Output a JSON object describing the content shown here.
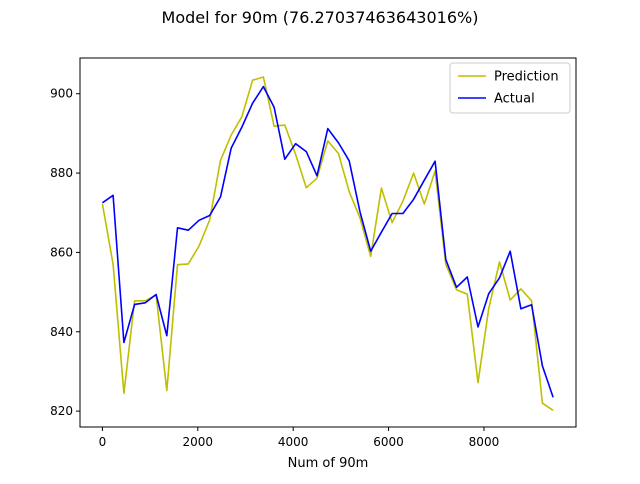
{
  "chart_data": {
    "type": "line",
    "title": "Model for 90m (76.27037463643016%)",
    "xlabel": "Num of 90m",
    "ylabel": "",
    "xlim": [
      -470,
      9930
    ],
    "ylim": [
      816,
      909
    ],
    "xticks": [
      0,
      2000,
      4000,
      6000,
      8000
    ],
    "yticks": [
      820,
      840,
      860,
      880,
      900
    ],
    "grid": false,
    "legend_position": "upper right",
    "x": [
      0,
      225,
      450,
      675,
      900,
      1125,
      1350,
      1575,
      1800,
      2025,
      2250,
      2475,
      2700,
      2925,
      3150,
      3375,
      3600,
      3825,
      4050,
      4275,
      4500,
      4725,
      4950,
      5175,
      5400,
      5625,
      5850,
      6075,
      6300,
      6525,
      6750,
      6975,
      7200,
      7425,
      7650,
      7875,
      8100,
      8325,
      8550,
      8775,
      9000,
      9225,
      9450
    ],
    "series": [
      {
        "name": "Prediction",
        "color": "#bfbf00",
        "values": [
          872.2,
          857.0,
          824.5,
          847.8,
          847.8,
          849.3,
          825.2,
          856.9,
          857.1,
          861.6,
          868.2,
          883.2,
          889.6,
          894.2,
          903.4,
          904.2,
          891.8,
          892.1,
          884.7,
          876.3,
          878.7,
          888.1,
          884.9,
          875.3,
          868.7,
          859.0,
          876.2,
          867.5,
          872.9,
          880.0,
          872.2,
          880.5,
          857.0,
          850.6,
          849.5,
          827.2,
          845.8,
          857.6,
          848.0,
          850.8,
          847.8,
          822.0,
          820.2
        ]
      },
      {
        "name": "Actual",
        "color": "#0000ff",
        "values": [
          872.5,
          874.4,
          837.3,
          846.9,
          847.3,
          849.4,
          839.0,
          866.2,
          865.6,
          868.1,
          869.3,
          874.0,
          886.3,
          891.6,
          897.6,
          901.8,
          896.6,
          883.5,
          887.4,
          885.4,
          879.3,
          891.2,
          887.6,
          883.1,
          870.2,
          860.3,
          865.1,
          869.8,
          869.8,
          873.4,
          878.2,
          883.0,
          858.2,
          851.2,
          853.8,
          841.2,
          849.6,
          853.6,
          860.3,
          845.8,
          846.8,
          831.4,
          823.5
        ]
      }
    ]
  }
}
